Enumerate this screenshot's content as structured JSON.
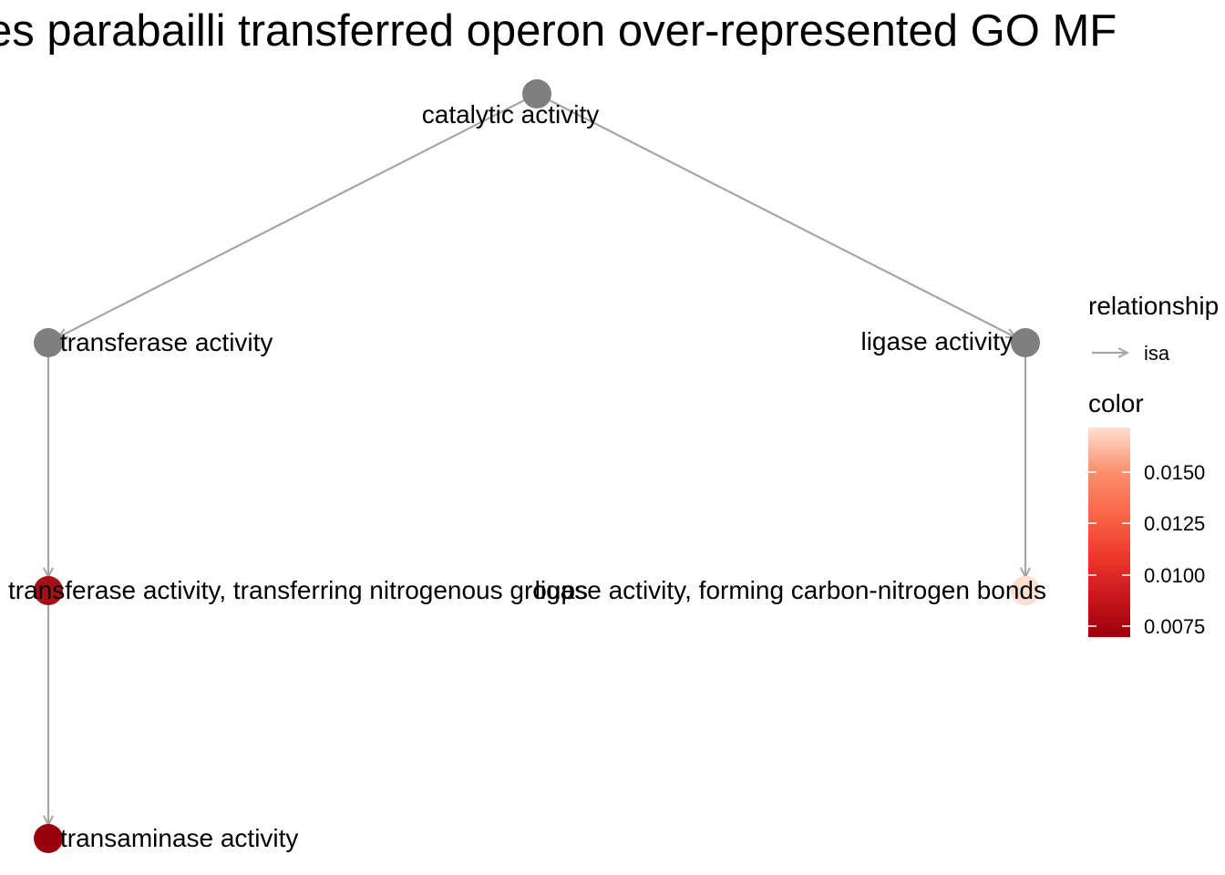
{
  "title": "es parabailli transferred operon over-represented GO MF",
  "nodes": [
    {
      "id": "catalytic",
      "label": "catalytic activity",
      "color": "#7f7f7f"
    },
    {
      "id": "transferase",
      "label": "transferase activity",
      "color": "#7f7f7f"
    },
    {
      "id": "ligase",
      "label": "ligase activity",
      "color": "#7f7f7f"
    },
    {
      "id": "transferase_n",
      "label": "transferase activity, transferring nitrogenous groups",
      "color": "#a50f15"
    },
    {
      "id": "ligase_cn",
      "label": "ligase activity, forming carbon-nitrogen bonds",
      "color": "#fee0d2"
    },
    {
      "id": "transaminase",
      "label": "transaminase activity",
      "color": "#99000d"
    }
  ],
  "edges": [
    {
      "from": "catalytic",
      "to": "transferase",
      "relationship": "isa"
    },
    {
      "from": "catalytic",
      "to": "ligase",
      "relationship": "isa"
    },
    {
      "from": "transferase",
      "to": "transferase_n",
      "relationship": "isa"
    },
    {
      "from": "ligase",
      "to": "ligase_cn",
      "relationship": "isa"
    },
    {
      "from": "transferase_n",
      "to": "transaminase",
      "relationship": "isa"
    }
  ],
  "legend": {
    "relationship_title": "relationship",
    "relationship_items": [
      {
        "label": "isa",
        "color": "#a6a6a6"
      }
    ],
    "color_title": "color",
    "color_ticks": [
      "0.0150",
      "0.0125",
      "0.0100",
      "0.0075"
    ],
    "gradient_colors": [
      "#fee0d2",
      "#fc9272",
      "#fb6a4a",
      "#ef3b2c",
      "#cb181d",
      "#99000d"
    ]
  },
  "edge_color": "#a6a6a6"
}
